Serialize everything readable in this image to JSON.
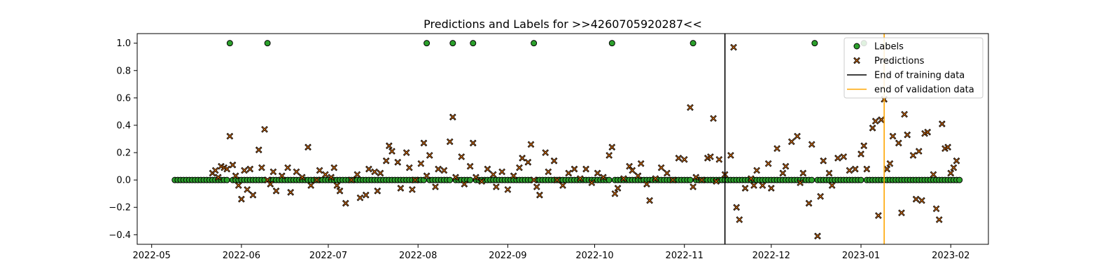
{
  "chart_data": {
    "type": "scatter",
    "title": "Predictions and Labels for >>4260705920287<<",
    "xlabel": "",
    "ylabel": "",
    "x_axis": "date",
    "xlim": [
      "2022-04-26",
      "2023-02-14"
    ],
    "ylim": [
      -0.47,
      1.07
    ],
    "x_tick_labels": [
      "2022-05",
      "2022-06",
      "2022-07",
      "2022-08",
      "2022-09",
      "2022-10",
      "2022-11",
      "2022-12",
      "2023-01",
      "2023-02"
    ],
    "x_tick_values": [
      "2022-05-01",
      "2022-06-01",
      "2022-07-01",
      "2022-08-01",
      "2022-09-01",
      "2022-10-01",
      "2022-11-01",
      "2022-12-01",
      "2023-01-01",
      "2023-02-01"
    ],
    "y_tick_labels": [
      "1.0",
      "0.8",
      "0.6",
      "0.4",
      "0.2",
      "0.0",
      "−0.2",
      "−0.4"
    ],
    "y_tick_values": [
      1.0,
      0.8,
      0.6,
      0.4,
      0.2,
      0.0,
      -0.2,
      -0.4
    ],
    "grid": false,
    "legend_position": "top-right",
    "label_start": "2022-05-09",
    "label_end": "2023-02-04",
    "label_positive_dates": [
      "2022-05-28",
      "2022-06-10",
      "2022-08-04",
      "2022-08-13",
      "2022-08-20",
      "2022-09-10",
      "2022-10-07",
      "2022-11-04",
      "2022-12-16",
      "2023-01-02"
    ],
    "series": [
      {
        "name": "Labels",
        "marker": "circle",
        "color": "#2ca02c",
        "edge": "#000000",
        "points": []
      },
      {
        "name": "Predictions",
        "marker": "x",
        "color": "#ff7f0e",
        "edge": "#000000",
        "points": [
          [
            "2022-05-22",
            0.05
          ],
          [
            "2022-05-23",
            0.07
          ],
          [
            "2022-05-24",
            0.02
          ],
          [
            "2022-05-25",
            0.1
          ],
          [
            "2022-05-26",
            0.09
          ],
          [
            "2022-05-27",
            0.08
          ],
          [
            "2022-05-28",
            0.32
          ],
          [
            "2022-05-29",
            0.11
          ],
          [
            "2022-05-30",
            0.03
          ],
          [
            "2022-05-31",
            -0.04
          ],
          [
            "2022-06-01",
            -0.14
          ],
          [
            "2022-06-02",
            0.07
          ],
          [
            "2022-06-03",
            -0.07
          ],
          [
            "2022-06-04",
            0.08
          ],
          [
            "2022-06-05",
            -0.11
          ],
          [
            "2022-06-07",
            0.22
          ],
          [
            "2022-06-08",
            0.09
          ],
          [
            "2022-06-09",
            0.37
          ],
          [
            "2022-06-10",
            0.0
          ],
          [
            "2022-06-11",
            -0.03
          ],
          [
            "2022-06-12",
            0.06
          ],
          [
            "2022-06-13",
            -0.08
          ],
          [
            "2022-06-15",
            0.03
          ],
          [
            "2022-06-17",
            0.09
          ],
          [
            "2022-06-18",
            -0.09
          ],
          [
            "2022-06-20",
            0.06
          ],
          [
            "2022-06-22",
            0.02
          ],
          [
            "2022-06-24",
            0.24
          ],
          [
            "2022-06-25",
            -0.04
          ],
          [
            "2022-06-27",
            0.0
          ],
          [
            "2022-06-28",
            0.07
          ],
          [
            "2022-06-30",
            0.04
          ],
          [
            "2022-07-02",
            0.02
          ],
          [
            "2022-07-03",
            0.09
          ],
          [
            "2022-07-04",
            -0.04
          ],
          [
            "2022-07-05",
            -0.08
          ],
          [
            "2022-07-07",
            -0.17
          ],
          [
            "2022-07-09",
            0.0
          ],
          [
            "2022-07-11",
            0.04
          ],
          [
            "2022-07-12",
            -0.13
          ],
          [
            "2022-07-14",
            -0.11
          ],
          [
            "2022-07-15",
            0.08
          ],
          [
            "2022-07-17",
            0.06
          ],
          [
            "2022-07-18",
            -0.08
          ],
          [
            "2022-07-19",
            0.05
          ],
          [
            "2022-07-21",
            0.14
          ],
          [
            "2022-07-22",
            0.25
          ],
          [
            "2022-07-23",
            0.21
          ],
          [
            "2022-07-25",
            0.13
          ],
          [
            "2022-07-26",
            -0.06
          ],
          [
            "2022-07-28",
            0.2
          ],
          [
            "2022-07-29",
            0.09
          ],
          [
            "2022-07-30",
            -0.07
          ],
          [
            "2022-07-31",
            0.0
          ],
          [
            "2022-08-02",
            0.12
          ],
          [
            "2022-08-03",
            0.27
          ],
          [
            "2022-08-04",
            0.03
          ],
          [
            "2022-08-05",
            0.18
          ],
          [
            "2022-08-07",
            -0.05
          ],
          [
            "2022-08-08",
            0.08
          ],
          [
            "2022-08-10",
            0.07
          ],
          [
            "2022-08-12",
            0.28
          ],
          [
            "2022-08-13",
            0.46
          ],
          [
            "2022-08-14",
            0.02
          ],
          [
            "2022-08-16",
            0.17
          ],
          [
            "2022-08-17",
            -0.03
          ],
          [
            "2022-08-19",
            0.1
          ],
          [
            "2022-08-20",
            0.27
          ],
          [
            "2022-08-21",
            0.02
          ],
          [
            "2022-08-23",
            -0.01
          ],
          [
            "2022-08-25",
            0.08
          ],
          [
            "2022-08-27",
            0.04
          ],
          [
            "2022-08-28",
            -0.05
          ],
          [
            "2022-08-30",
            0.06
          ],
          [
            "2022-09-01",
            -0.07
          ],
          [
            "2022-09-03",
            0.03
          ],
          [
            "2022-09-05",
            0.09
          ],
          [
            "2022-09-06",
            0.16
          ],
          [
            "2022-09-08",
            0.13
          ],
          [
            "2022-09-09",
            0.26
          ],
          [
            "2022-09-10",
            0.0
          ],
          [
            "2022-09-11",
            -0.05
          ],
          [
            "2022-09-12",
            -0.11
          ],
          [
            "2022-09-14",
            0.2
          ],
          [
            "2022-09-15",
            0.06
          ],
          [
            "2022-09-17",
            0.14
          ],
          [
            "2022-09-18",
            0.0
          ],
          [
            "2022-09-20",
            -0.04
          ],
          [
            "2022-09-22",
            0.05
          ],
          [
            "2022-09-24",
            0.08
          ],
          [
            "2022-09-26",
            0.01
          ],
          [
            "2022-09-28",
            0.08
          ],
          [
            "2022-09-30",
            -0.02
          ],
          [
            "2022-10-02",
            0.05
          ],
          [
            "2022-10-04",
            0.02
          ],
          [
            "2022-10-06",
            0.18
          ],
          [
            "2022-10-07",
            0.24
          ],
          [
            "2022-10-08",
            -0.1
          ],
          [
            "2022-10-09",
            -0.06
          ],
          [
            "2022-10-11",
            0.01
          ],
          [
            "2022-10-13",
            0.1
          ],
          [
            "2022-10-14",
            0.07
          ],
          [
            "2022-10-16",
            0.03
          ],
          [
            "2022-10-17",
            0.12
          ],
          [
            "2022-10-19",
            -0.03
          ],
          [
            "2022-10-20",
            -0.15
          ],
          [
            "2022-10-22",
            0.01
          ],
          [
            "2022-10-24",
            0.09
          ],
          [
            "2022-10-26",
            0.05
          ],
          [
            "2022-10-28",
            0.0
          ],
          [
            "2022-10-30",
            0.16
          ],
          [
            "2022-11-01",
            0.15
          ],
          [
            "2022-11-03",
            0.53
          ],
          [
            "2022-11-04",
            -0.05
          ],
          [
            "2022-11-05",
            0.02
          ],
          [
            "2022-11-07",
            0.0
          ],
          [
            "2022-11-09",
            0.16
          ],
          [
            "2022-11-10",
            0.17
          ],
          [
            "2022-11-11",
            0.45
          ],
          [
            "2022-11-12",
            -0.01
          ],
          [
            "2022-11-13",
            0.15
          ],
          [
            "2022-11-15",
            0.04
          ],
          [
            "2022-11-17",
            0.18
          ],
          [
            "2022-11-18",
            0.97
          ],
          [
            "2022-11-19",
            -0.2
          ],
          [
            "2022-11-20",
            -0.29
          ],
          [
            "2022-11-22",
            -0.06
          ],
          [
            "2022-11-24",
            0.01
          ],
          [
            "2022-11-25",
            -0.04
          ],
          [
            "2022-11-26",
            0.07
          ],
          [
            "2022-11-28",
            -0.04
          ],
          [
            "2022-11-30",
            0.12
          ],
          [
            "2022-12-01",
            -0.06
          ],
          [
            "2022-12-03",
            0.23
          ],
          [
            "2022-12-05",
            0.05
          ],
          [
            "2022-12-06",
            0.1
          ],
          [
            "2022-12-08",
            0.28
          ],
          [
            "2022-12-10",
            0.32
          ],
          [
            "2022-12-11",
            -0.02
          ],
          [
            "2022-12-12",
            0.05
          ],
          [
            "2022-12-14",
            -0.17
          ],
          [
            "2022-12-15",
            0.26
          ],
          [
            "2022-12-17",
            -0.41
          ],
          [
            "2022-12-18",
            -0.12
          ],
          [
            "2022-12-19",
            0.14
          ],
          [
            "2022-12-21",
            0.05
          ],
          [
            "2022-12-22",
            -0.04
          ],
          [
            "2022-12-24",
            0.16
          ],
          [
            "2022-12-26",
            0.17
          ],
          [
            "2022-12-28",
            0.07
          ],
          [
            "2022-12-30",
            0.08
          ],
          [
            "2023-01-01",
            0.19
          ],
          [
            "2023-01-02",
            0.25
          ],
          [
            "2023-01-03",
            0.08
          ],
          [
            "2023-01-05",
            0.38
          ],
          [
            "2023-01-06",
            0.43
          ],
          [
            "2023-01-07",
            -0.26
          ],
          [
            "2023-01-08",
            0.44
          ],
          [
            "2023-01-09",
            0.59
          ],
          [
            "2023-01-10",
            0.08
          ],
          [
            "2023-01-11",
            0.12
          ],
          [
            "2023-01-12",
            0.32
          ],
          [
            "2023-01-14",
            0.27
          ],
          [
            "2023-01-15",
            -0.24
          ],
          [
            "2023-01-16",
            0.48
          ],
          [
            "2023-01-17",
            0.33
          ],
          [
            "2023-01-19",
            0.18
          ],
          [
            "2023-01-20",
            -0.14
          ],
          [
            "2023-01-21",
            0.21
          ],
          [
            "2023-01-22",
            -0.15
          ],
          [
            "2023-01-23",
            0.34
          ],
          [
            "2023-01-24",
            0.35
          ],
          [
            "2023-01-26",
            0.04
          ],
          [
            "2023-01-27",
            -0.21
          ],
          [
            "2023-01-28",
            -0.29
          ],
          [
            "2023-01-29",
            0.41
          ],
          [
            "2023-01-30",
            0.23
          ],
          [
            "2023-01-31",
            0.24
          ],
          [
            "2023-02-01",
            0.05
          ],
          [
            "2023-02-02",
            0.09
          ],
          [
            "2023-02-03",
            0.14
          ]
        ]
      }
    ],
    "vlines": [
      {
        "name": "End of training data",
        "x": "2022-11-15",
        "color": "#000000"
      },
      {
        "name": "end of validation data",
        "x": "2023-01-09",
        "color": "#ffa500"
      }
    ]
  }
}
